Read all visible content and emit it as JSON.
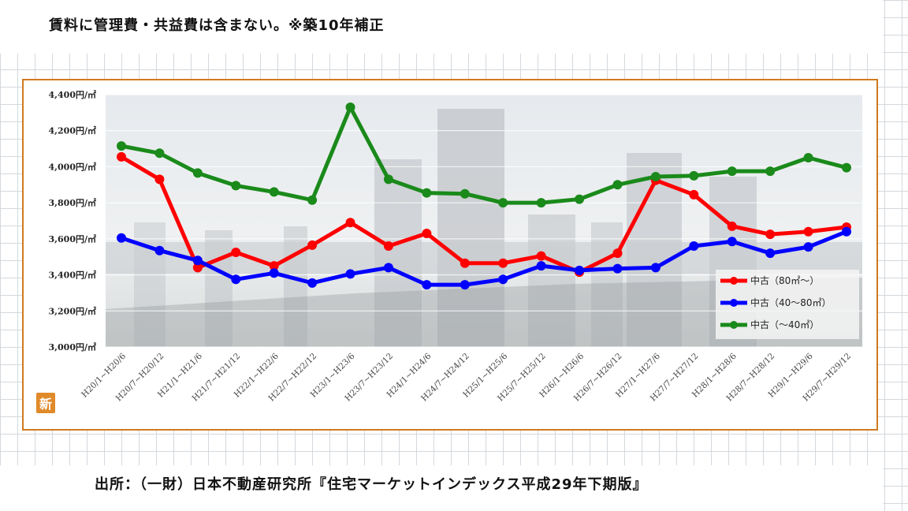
{
  "note": "賃料に管理費・共益費は含まない。※築10年補正",
  "source": "出所：（一財）日本不動産研究所『住宅マーケットインデックス平成29年下期版』",
  "badge": "新",
  "chart_data": {
    "type": "line",
    "categories": [
      "H20/1~H20/6",
      "H20/7~H20/12",
      "H21/1~H21/6",
      "H21/7~H21/12",
      "H22/1~H22/6",
      "H22/7~H22/12",
      "H23/1~H23/6",
      "H23/7~H23/12",
      "H24/1~H24/6",
      "H24/7~H24/12",
      "H25/1~H25/6",
      "H25/7~H25/12",
      "H26/1~H26/6",
      "H26/7~H26/12",
      "H27/1~H27/6",
      "H27/7~H27/12",
      "H28/1~H28/6",
      "H28/7~H28/12",
      "H29/1~H29/6",
      "H29/7~H29/12"
    ],
    "ylim": [
      3000,
      4400
    ],
    "yticks": [
      3000,
      3200,
      3400,
      3600,
      3800,
      4000,
      4200,
      4400
    ],
    "ytick_labels": [
      "3,000円/㎡",
      "3,200円/㎡",
      "3,400円/㎡",
      "3,600円/㎡",
      "3,800円/㎡",
      "4,000円/㎡",
      "4,200円/㎡",
      "4,400円/㎡"
    ],
    "legend_position": "bottom-right",
    "series": [
      {
        "name": "中古（80㎡～）",
        "color": "#ff0000",
        "values": [
          4055,
          3930,
          3440,
          3525,
          3450,
          3565,
          3690,
          3560,
          3630,
          3465,
          3465,
          3505,
          3415,
          3520,
          3925,
          3845,
          3670,
          3625,
          3640,
          3665
        ]
      },
      {
        "name": "中古（40～80㎡）",
        "color": "#0000ff",
        "values": [
          3605,
          3535,
          3480,
          3375,
          3410,
          3355,
          3405,
          3440,
          3345,
          3345,
          3375,
          3450,
          3425,
          3435,
          3440,
          3560,
          3585,
          3520,
          3555,
          3640
        ]
      },
      {
        "name": "中古（～40㎡）",
        "color": "#1a8a1a",
        "values": [
          4115,
          4075,
          3965,
          3895,
          3860,
          3815,
          4330,
          3930,
          3855,
          3850,
          3800,
          3800,
          3820,
          3900,
          3945,
          3950,
          3975,
          3975,
          4050,
          3995
        ]
      }
    ]
  }
}
